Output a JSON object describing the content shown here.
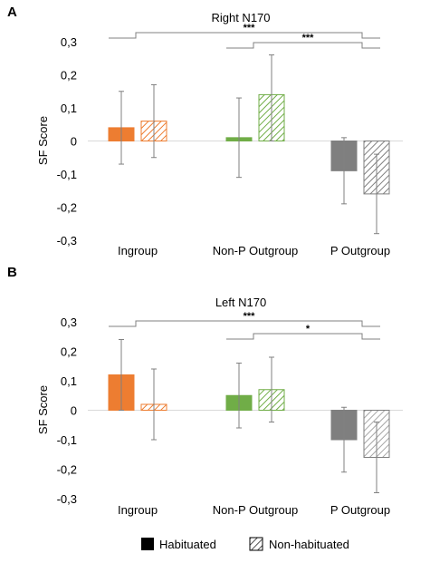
{
  "legend": {
    "habituated_label": "Habituated",
    "non_habituated_label": "Non-habituated"
  },
  "colors": {
    "ingroup_fill": "#ED7D31",
    "ingroup_hatch": "#F4B183",
    "nonp_fill_right": "#70AD47",
    "nonp_hatch_right": "#A9D18E",
    "nonp_fill_left": "#70AD47",
    "nonp_hatch_left": "#A9D18E",
    "p_fill": "#7F7F7F",
    "p_hatch": "#7F7F7F",
    "p_hatch_left": "#BFBFBF",
    "axis": "#D9D9D9",
    "error_bar": "#808080",
    "bracket": "#808080"
  },
  "chart_data": [
    {
      "panel": "A",
      "type": "bar",
      "title": "Right N170",
      "ylabel": "SF Score",
      "ylim": [
        -0.3,
        0.3
      ],
      "yticks": [
        "0,3",
        "0,2",
        "0,1",
        "0",
        "-0,1",
        "-0,2",
        "-0,3"
      ],
      "categories": [
        "Ingroup",
        "Non-P Outgroup",
        "P Outgroup"
      ],
      "series": [
        {
          "name": "Habituated",
          "values": [
            0.04,
            0.01,
            -0.09
          ],
          "error_low": [
            -0.07,
            -0.11,
            -0.19
          ],
          "error_high": [
            0.15,
            0.13,
            0.01
          ]
        },
        {
          "name": "Non-habituated",
          "values": [
            0.06,
            0.14,
            -0.16
          ],
          "error_low": [
            -0.05,
            0.0,
            -0.28
          ],
          "error_high": [
            0.17,
            0.26,
            -0.04
          ]
        }
      ],
      "significance": [
        {
          "from": "Ingroup",
          "to": "P Outgroup",
          "label": "***"
        },
        {
          "from": "Non-P Outgroup",
          "to": "P Outgroup",
          "label": "***"
        }
      ]
    },
    {
      "panel": "B",
      "type": "bar",
      "title": "Left N170",
      "ylabel": "SF Score",
      "ylim": [
        -0.3,
        0.3
      ],
      "yticks": [
        "0,3",
        "0,2",
        "0,1",
        "0",
        "-0,1",
        "-0,2",
        "-0,3"
      ],
      "categories": [
        "Ingroup",
        "Non-P Outgroup",
        "P Outgroup"
      ],
      "series": [
        {
          "name": "Habituated",
          "values": [
            0.12,
            0.05,
            -0.1
          ],
          "error_low": [
            0.0,
            -0.06,
            -0.21
          ],
          "error_high": [
            0.24,
            0.16,
            0.01
          ]
        },
        {
          "name": "Non-habituated",
          "values": [
            0.02,
            0.07,
            -0.16
          ],
          "error_low": [
            -0.1,
            -0.04,
            -0.28
          ],
          "error_high": [
            0.14,
            0.18,
            -0.04
          ]
        }
      ],
      "significance": [
        {
          "from": "Ingroup",
          "to": "P Outgroup",
          "label": "***"
        },
        {
          "from": "Non-P Outgroup",
          "to": "P Outgroup",
          "label": "*"
        }
      ]
    }
  ]
}
